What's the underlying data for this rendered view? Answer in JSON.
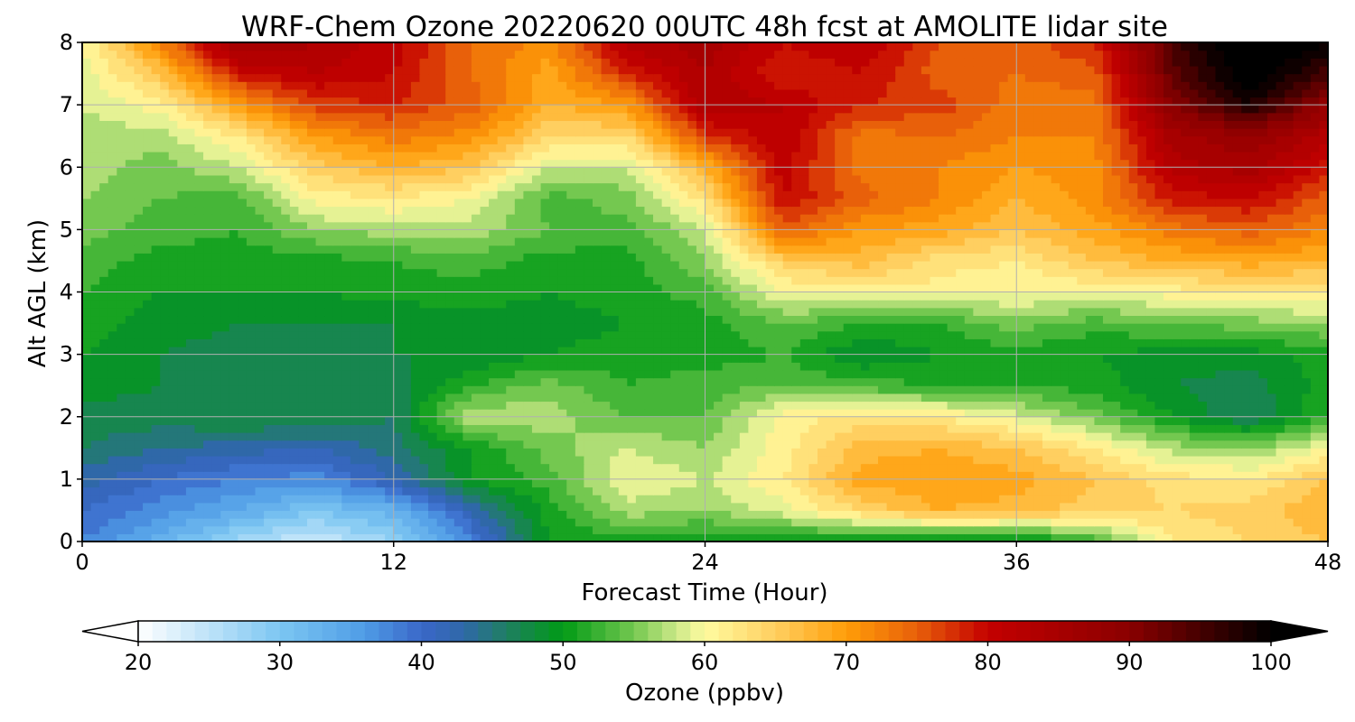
{
  "chart_data": {
    "type": "heatmap",
    "title": "WRF-Chem Ozone  20220620 00UTC 48h fcst at AMOLITE lidar site",
    "xlabel": "Forecast Time (Hour)",
    "ylabel": "Alt AGL (km)",
    "xlim": [
      0,
      48
    ],
    "ylim": [
      0,
      8
    ],
    "x_ticks": [
      "0",
      "12",
      "24",
      "36",
      "48"
    ],
    "y_ticks": [
      "0",
      "1",
      "2",
      "3",
      "4",
      "5",
      "6",
      "7",
      "8"
    ],
    "grid": true,
    "x": [
      0,
      3,
      6,
      9,
      12,
      15,
      18,
      21,
      24,
      27,
      30,
      33,
      36,
      39,
      42,
      45,
      48
    ],
    "y": [
      0,
      0.5,
      1,
      1.5,
      2,
      2.5,
      3,
      3.5,
      4,
      4.5,
      5,
      5.5,
      6,
      6.5,
      7,
      7.5,
      8
    ],
    "z_rows_by_altitude": [
      [
        38,
        33,
        27,
        24,
        28,
        38,
        50,
        51,
        50,
        50,
        49,
        48,
        48,
        52,
        62,
        64,
        66
      ],
      [
        40,
        37,
        34,
        30,
        33,
        42,
        51,
        57,
        56,
        59,
        64,
        68,
        67,
        65,
        64,
        65,
        68
      ],
      [
        43,
        40,
        38,
        37,
        42,
        50,
        53,
        60,
        58,
        62,
        69,
        70,
        69,
        66,
        63,
        62,
        66
      ],
      [
        46,
        44,
        43,
        42,
        45,
        50,
        55,
        58,
        56,
        61,
        67,
        68,
        66,
        62,
        57,
        56,
        60
      ],
      [
        47,
        47,
        48,
        48,
        46,
        58,
        57,
        54,
        54,
        61,
        63,
        62,
        59,
        55,
        50,
        46,
        52
      ],
      [
        49,
        48,
        48,
        47,
        47,
        52,
        55,
        52,
        53,
        54,
        53,
        52,
        52,
        51,
        48,
        47,
        51
      ],
      [
        50,
        48,
        47,
        47,
        48,
        48,
        50,
        51,
        51,
        52,
        48,
        50,
        51,
        50,
        49,
        49,
        51
      ],
      [
        51,
        49,
        48,
        48,
        48,
        49,
        49,
        50,
        51,
        54,
        52,
        52,
        55,
        53,
        54,
        55,
        56
      ],
      [
        52,
        50,
        50,
        50,
        51,
        51,
        50,
        51,
        53,
        60,
        61,
        61,
        60,
        60,
        61,
        62,
        62
      ],
      [
        53,
        51,
        51,
        51,
        52,
        53,
        51,
        51,
        56,
        65,
        67,
        63,
        62,
        66,
        68,
        69,
        68
      ],
      [
        55,
        53,
        52,
        56,
        57,
        57,
        54,
        53,
        58,
        75,
        70,
        69,
        66,
        69,
        73,
        75,
        72
      ],
      [
        56,
        54,
        53,
        61,
        62,
        60,
        53,
        55,
        63,
        80,
        75,
        72,
        68,
        71,
        79,
        80,
        75
      ],
      [
        57,
        55,
        58,
        65,
        68,
        66,
        58,
        58,
        68,
        81,
        73,
        72,
        70,
        71,
        83,
        85,
        79
      ],
      [
        57,
        57,
        62,
        70,
        73,
        71,
        64,
        64,
        77,
        82,
        73,
        74,
        72,
        72,
        85,
        88,
        83
      ],
      [
        58,
        61,
        70,
        77,
        78,
        75,
        68,
        70,
        84,
        82,
        78,
        77,
        73,
        73,
        90,
        98,
        88
      ],
      [
        59,
        66,
        79,
        82,
        80,
        74,
        69,
        78,
        84,
        78,
        80,
        75,
        74,
        75,
        93,
        102,
        95
      ],
      [
        60,
        72,
        87,
        84,
        81,
        74,
        71,
        83,
        85,
        80,
        82,
        76,
        75,
        78,
        95,
        104,
        100
      ]
    ],
    "colorbar": {
      "label": "Ozone  (ppbv)",
      "min": 20,
      "max": 100,
      "ticks": [
        "20",
        "30",
        "40",
        "50",
        "60",
        "70",
        "80",
        "90",
        "100"
      ],
      "extend": "both",
      "color_stops": [
        {
          "v": 20,
          "c": "#ffffff"
        },
        {
          "v": 30,
          "c": "#7cc6f2"
        },
        {
          "v": 36,
          "c": "#4f9ce6"
        },
        {
          "v": 40,
          "c": "#3a67c8"
        },
        {
          "v": 43,
          "c": "#2f68a8"
        },
        {
          "v": 46,
          "c": "#1f7f62"
        },
        {
          "v": 50,
          "c": "#009a15"
        },
        {
          "v": 55,
          "c": "#74c850"
        },
        {
          "v": 58,
          "c": "#cbe888"
        },
        {
          "v": 60,
          "c": "#fffba0"
        },
        {
          "v": 65,
          "c": "#ffcf60"
        },
        {
          "v": 70,
          "c": "#ff9d08"
        },
        {
          "v": 75,
          "c": "#e8600a"
        },
        {
          "v": 80,
          "c": "#c40000"
        },
        {
          "v": 90,
          "c": "#8a0000"
        },
        {
          "v": 100,
          "c": "#000000"
        }
      ]
    }
  }
}
